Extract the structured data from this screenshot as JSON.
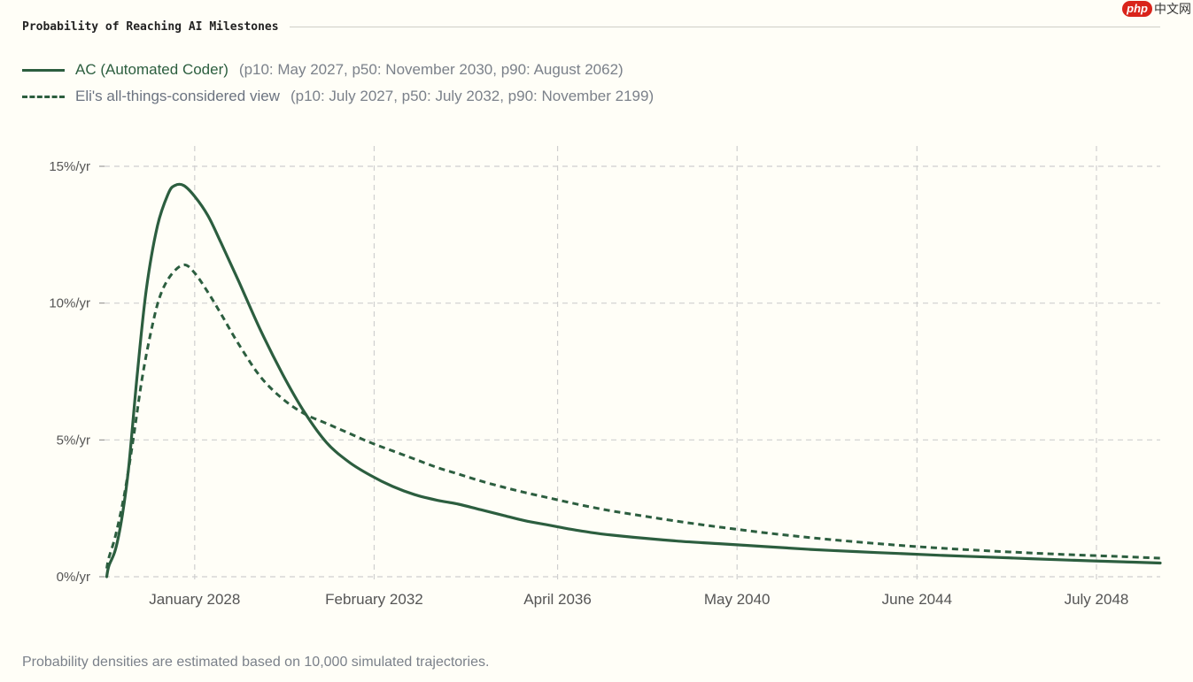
{
  "title": "Probability of Reaching AI Milestones",
  "watermark": {
    "badge": "php",
    "text": "中文网"
  },
  "legend": [
    {
      "label": "AC (Automated Coder)",
      "detail": "(p10: May 2027, p50: November 2030, p90: August 2062)",
      "style": "solid"
    },
    {
      "label": "Eli's all-things-considered view",
      "detail": "(p10: July 2027, p50: July 2032, p90: November 2199)",
      "style": "dashed"
    }
  ],
  "footnote": "Probability densities are estimated based on 10,000 simulated trajectories.",
  "chart_data": {
    "type": "line",
    "title": "Probability of Reaching AI Milestones",
    "xlabel": "",
    "ylabel": "",
    "x_ticks": [
      {
        "label": "January 2028",
        "value": 2028.0
      },
      {
        "label": "February 2032",
        "value": 2032.08
      },
      {
        "label": "April 2036",
        "value": 2036.25
      },
      {
        "label": "May 2040",
        "value": 2040.33
      },
      {
        "label": "June 2044",
        "value": 2044.42
      },
      {
        "label": "July 2048",
        "value": 2048.5
      }
    ],
    "y_ticks": [
      {
        "label": "0%/yr",
        "value": 0
      },
      {
        "label": "5%/yr",
        "value": 5
      },
      {
        "label": "10%/yr",
        "value": 10
      },
      {
        "label": "15%/yr",
        "value": 15
      }
    ],
    "xlim": [
      2025.95,
      2049.95
    ],
    "ylim": [
      0,
      15
    ],
    "grid": true,
    "colors": {
      "line": "#2c5e3f",
      "grid": "#cfcfcf",
      "axis": "#555555"
    },
    "series": [
      {
        "name": "AC (Automated Coder)",
        "style": "solid",
        "x": [
          2026.0,
          2026.05,
          2026.2,
          2026.35,
          2026.5,
          2026.7,
          2026.9,
          2027.15,
          2027.4,
          2027.55,
          2027.75,
          2028.0,
          2028.3,
          2028.6,
          2029.0,
          2029.5,
          2030.0,
          2030.5,
          2031.0,
          2031.5,
          2032.0,
          2032.5,
          2033.0,
          2033.5,
          2034.0,
          2034.5,
          2035.0,
          2035.5,
          2036.0,
          2036.5,
          2037.0,
          2037.5,
          2038.0,
          2039.0,
          2040.0,
          2041.0,
          2042.0,
          2043.0,
          2044.0,
          2045.0,
          2046.0,
          2047.0,
          2048.0,
          2049.0,
          2049.95
        ],
        "values": [
          0.0,
          0.4,
          1.0,
          2.2,
          4.0,
          7.5,
          10.5,
          12.8,
          14.0,
          14.3,
          14.3,
          13.9,
          13.2,
          12.2,
          10.8,
          9.0,
          7.4,
          6.0,
          4.9,
          4.2,
          3.7,
          3.3,
          3.0,
          2.8,
          2.65,
          2.45,
          2.25,
          2.05,
          1.9,
          1.75,
          1.62,
          1.52,
          1.44,
          1.3,
          1.2,
          1.1,
          1.0,
          0.92,
          0.85,
          0.78,
          0.72,
          0.66,
          0.6,
          0.55,
          0.5
        ]
      },
      {
        "name": "Eli's all-things-considered view",
        "style": "dashed",
        "x": [
          2026.0,
          2026.05,
          2026.2,
          2026.4,
          2026.6,
          2026.8,
          2027.0,
          2027.2,
          2027.45,
          2027.75,
          2028.0,
          2028.3,
          2028.6,
          2029.0,
          2029.5,
          2030.0,
          2030.5,
          2031.0,
          2031.5,
          2032.0,
          2032.5,
          2033.0,
          2033.5,
          2034.0,
          2034.5,
          2035.0,
          2035.5,
          2036.0,
          2036.5,
          2037.0,
          2037.5,
          2038.0,
          2039.0,
          2040.0,
          2041.0,
          2042.0,
          2043.0,
          2044.0,
          2045.0,
          2046.0,
          2047.0,
          2048.0,
          2049.0,
          2049.95
        ],
        "values": [
          0.3,
          0.7,
          1.5,
          3.0,
          5.0,
          7.2,
          8.9,
          10.2,
          11.0,
          11.4,
          11.1,
          10.4,
          9.6,
          8.5,
          7.3,
          6.5,
          5.95,
          5.6,
          5.25,
          4.9,
          4.6,
          4.3,
          4.0,
          3.75,
          3.5,
          3.28,
          3.08,
          2.9,
          2.72,
          2.55,
          2.4,
          2.27,
          2.02,
          1.8,
          1.6,
          1.43,
          1.28,
          1.15,
          1.04,
          0.95,
          0.87,
          0.8,
          0.74,
          0.68
        ]
      }
    ]
  }
}
